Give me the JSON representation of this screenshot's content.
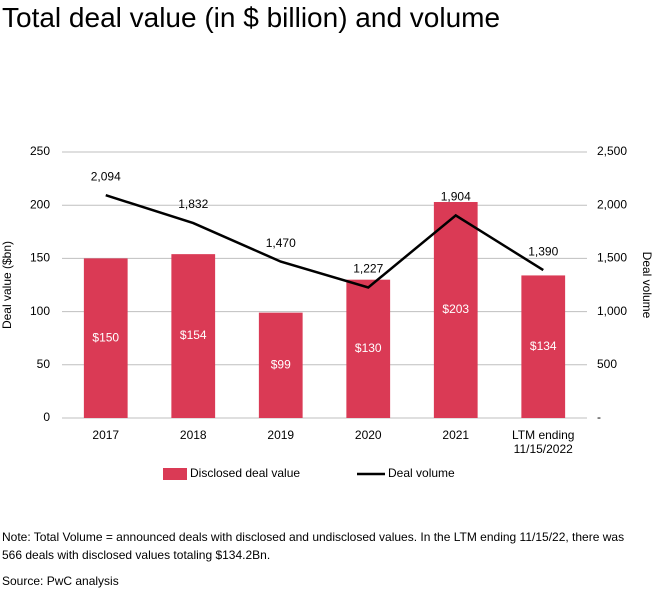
{
  "chart_data": {
    "type": "bar",
    "title": "Total deal value (in $ billion) and volume",
    "y_label": "Deal value  ($bn)",
    "y2_label": "Deal volume",
    "categories": [
      "2017",
      "2018",
      "2019",
      "2020",
      "2021",
      "LTM ending 11/15/2022"
    ],
    "series": [
      {
        "name": "Disclosed deal value",
        "type": "bar",
        "color": "#da3a55",
        "values": [
          150,
          154,
          99,
          130,
          203,
          134
        ],
        "value_labels": [
          "$150",
          "$154",
          "$99",
          "$130",
          "$203",
          "$134"
        ]
      },
      {
        "name": "Deal volume",
        "type": "line",
        "axis": "y2",
        "color": "#000000",
        "values": [
          2094,
          1832,
          1470,
          1227,
          1904,
          1390
        ],
        "value_labels": [
          "2,094",
          "1,832",
          "1,470",
          "1,227",
          "1,904",
          "1,390"
        ]
      }
    ],
    "ylim": [
      0,
      250
    ],
    "yticks": [
      0,
      50,
      100,
      150,
      200,
      250
    ],
    "y2lim": [
      0,
      2500
    ],
    "y2ticks": [
      {
        "value": 0,
        "label": "-"
      },
      500,
      {
        "value": 1000,
        "label": "1,000"
      },
      {
        "value": 1500,
        "label": "1,500"
      },
      {
        "value": 2000,
        "label": "2,000"
      },
      {
        "value": 2500,
        "label": "2,500"
      }
    ],
    "grid": true,
    "legend": "bottom",
    "note": "Note: Total Volume = announced deals with disclosed and undisclosed values. In the LTM ending 11/15/22, there was 566 deals with disclosed values totaling $134.2Bn.",
    "source": "Source: PwC analysis"
  }
}
